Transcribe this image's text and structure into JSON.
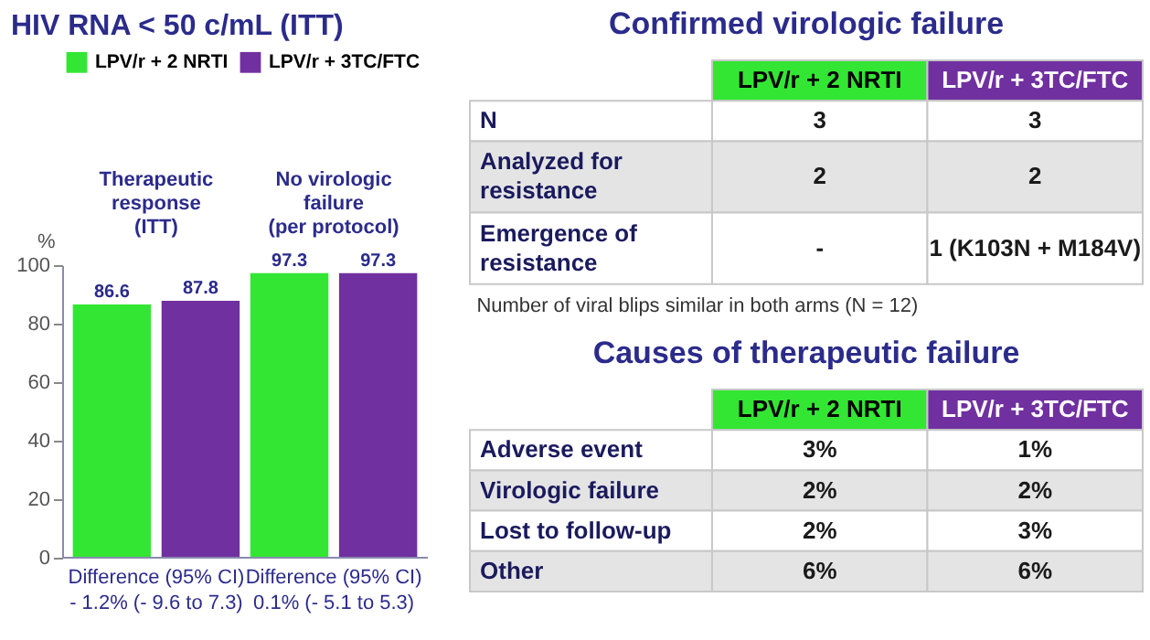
{
  "chart_data": [
    {
      "type": "bar",
      "title": "HIV RNA < 50 c/mL (ITT)",
      "ylabel": "%",
      "categories": [
        "Therapeutic response (ITT)",
        "No virologic failure (per protocol)"
      ],
      "series": [
        {
          "name": "LPV/r + 2 NRTI",
          "color": "#33e633",
          "values": [
            86.6,
            97.3
          ]
        },
        {
          "name": "LPV/r + 3TC/FTC",
          "color": "#7030a0",
          "values": [
            87.8,
            97.3
          ]
        }
      ],
      "ylim": [
        0,
        100
      ],
      "yticks": [
        0,
        20,
        40,
        60,
        80,
        100
      ],
      "data_labels": true,
      "legend": "top",
      "annotations": [
        "Difference (95% CI) - 1.2% (- 9.6 to 7.3)",
        "Difference (95% CI) 0.1% (- 5.1 to 5.3)"
      ]
    },
    {
      "type": "other",
      "title": "Confirmed virologic failure",
      "categories": [
        null,
        "LPV/r + 2 NRTI",
        "LPV/r + 3TC/FTC"
      ],
      "colors": [
        null,
        "#33e633",
        "#7030a0"
      ],
      "y_categories": [
        "N",
        "Analyzed for resistance",
        "Emergence of resistance"
      ],
      "cell_labels": [
        [
          "3",
          "3"
        ],
        [
          "2",
          "2"
        ],
        [
          "-",
          "1 (K103N + M184V)"
        ]
      ],
      "annotations": [
        "Number of viral blips similar in both arms (N = 12)"
      ]
    },
    {
      "type": "other",
      "title": "Causes of therapeutic failure",
      "categories": [
        null,
        "LPV/r + 2 NRTI",
        "LPV/r + 3TC/FTC"
      ],
      "colors": [
        null,
        "#33e633",
        "#7030a0"
      ],
      "y_categories": [
        "Adverse event",
        "Virologic failure",
        "Lost to follow-up",
        "Other"
      ],
      "cell_labels": [
        [
          "3%",
          "1%"
        ],
        [
          "2%",
          "2%"
        ],
        [
          "2%",
          "3%"
        ],
        [
          "6%",
          "6%"
        ]
      ]
    }
  ]
}
